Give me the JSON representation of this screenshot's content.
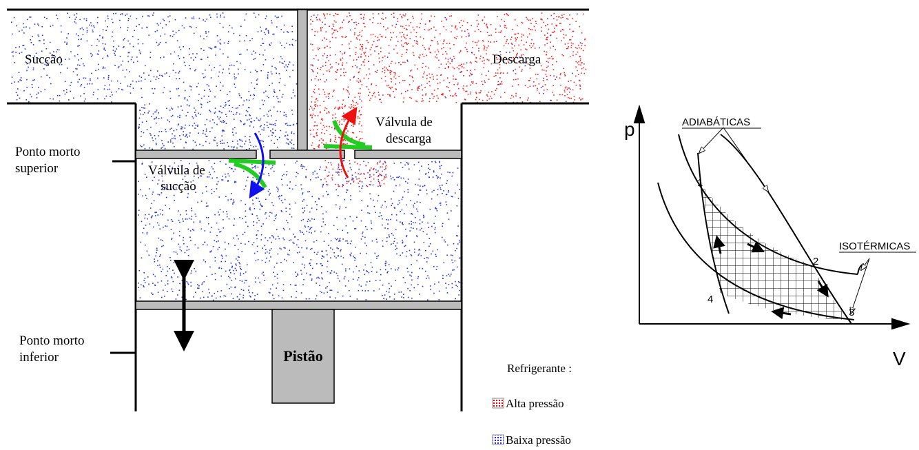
{
  "compressor": {
    "labels": {
      "suction": "Sucção",
      "discharge": "Descarga",
      "discharge_valve": [
        "Válvula de",
        "descarga"
      ],
      "suction_valve": [
        "Válvula de",
        "sucção"
      ],
      "top_dead_center": [
        "Ponto morto",
        "superior"
      ],
      "bottom_dead_center": [
        "Ponto morto",
        "inferior"
      ],
      "piston": "Pistão"
    }
  },
  "legend": {
    "title": "Refrigerante :",
    "items": [
      "Alta pressão",
      "Baixa pressão"
    ]
  },
  "pv_diagram": {
    "y_axis": "p",
    "x_axis": "V",
    "adiabatic_label": "ADIABÁTICAS",
    "isothermal_label": "ISOTÉRMICAS",
    "points": [
      "1",
      "2",
      "3",
      "4"
    ]
  }
}
